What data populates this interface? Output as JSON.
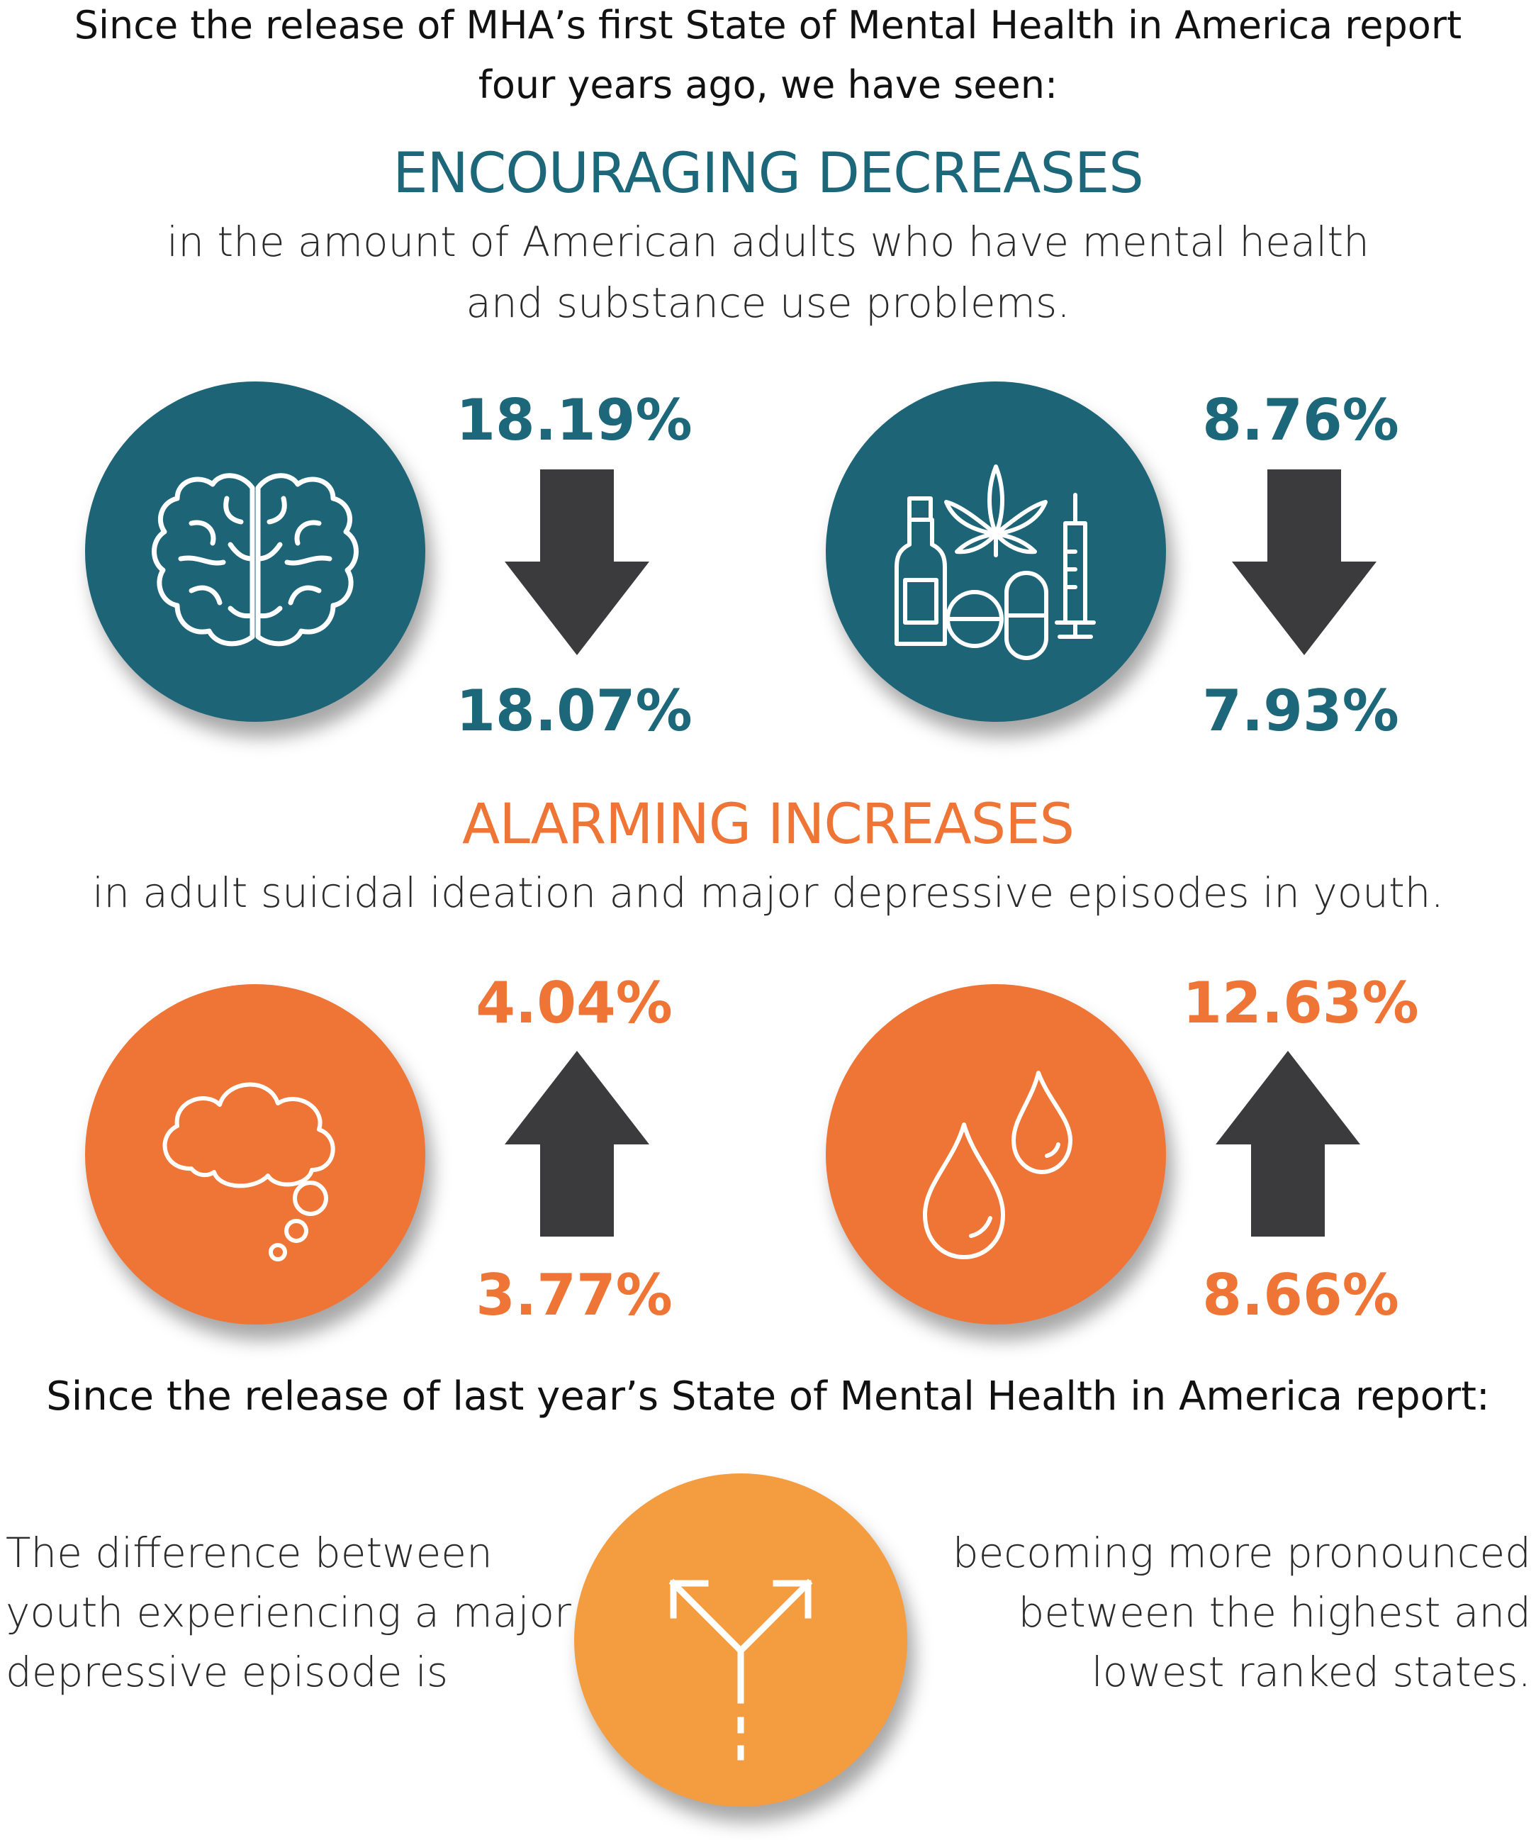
{
  "intro": {
    "line1": "Since the release of MHA’s first State of Mental Health in America report",
    "line2": "four years ago, we have seen:"
  },
  "decreases": {
    "title": "ENCOURAGING DECREASES",
    "subtitle_line1": "in the amount of American adults who have mental health",
    "subtitle_line2": "and substance use problems.",
    "items": [
      {
        "icon": "brain-icon",
        "before": "18.19%",
        "after": "18.07%",
        "direction": "down"
      },
      {
        "icon": "substances-icon",
        "before": "8.76%",
        "after": "7.93%",
        "direction": "down"
      }
    ]
  },
  "increases": {
    "title": "ALARMING INCREASES",
    "subtitle": "in adult suicidal ideation and major depressive episodes in youth.",
    "items": [
      {
        "icon": "thought-cloud-icon",
        "before": "3.77%",
        "after": "4.04%",
        "direction": "up"
      },
      {
        "icon": "tear-drops-icon",
        "before": "8.66%",
        "after": "12.63%",
        "direction": "up"
      }
    ]
  },
  "last_year": {
    "heading": "Since the release of last year’s State of Mental Health in America report:",
    "left_line1": "The difference between",
    "left_line2": "youth experiencing a major",
    "left_line3": "depressive episode is",
    "right_line1": "becoming more pronounced",
    "right_line2": "between the highest and",
    "right_line3": "lowest ranked states.",
    "icon": "diverging-arrows-icon"
  },
  "colors": {
    "teal": "#1d6477",
    "orange": "#ee7535",
    "light_orange": "#f49c40",
    "arrow_gray": "#3b3b3d"
  }
}
